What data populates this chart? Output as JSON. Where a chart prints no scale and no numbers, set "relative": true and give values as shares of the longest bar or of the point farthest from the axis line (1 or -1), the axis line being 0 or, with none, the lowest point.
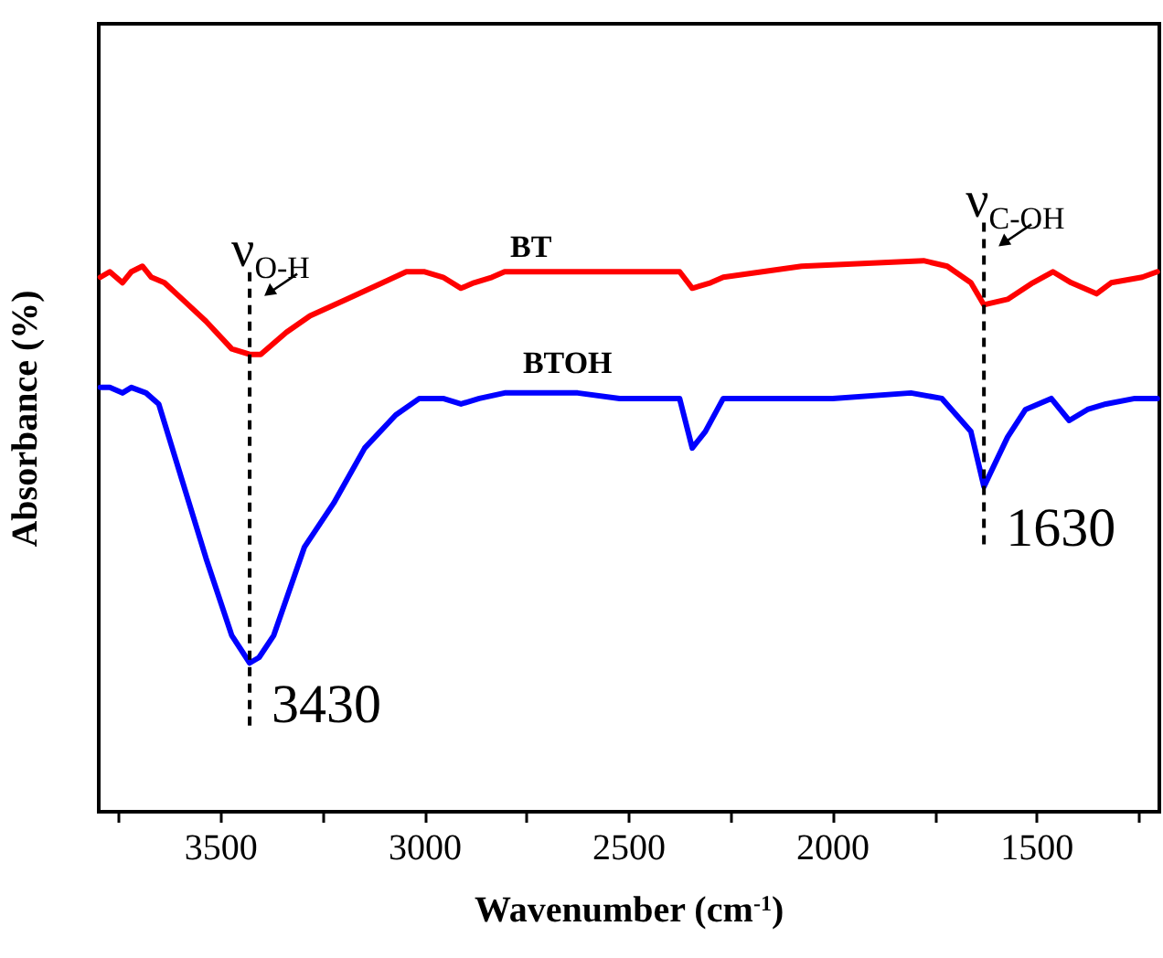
{
  "chart_data": {
    "type": "line",
    "xlabel": "Wavenumber (cm$^{-1}$)",
    "ylabel": "Absorbance (%)",
    "relative": true,
    "xlim": [
      3800,
      1200
    ],
    "xticks": [
      {
        "value": 3750,
        "label": null
      },
      3500,
      {
        "value": 3250,
        "label": null
      },
      3000,
      {
        "value": 2750,
        "label": null
      },
      2500,
      {
        "value": 2250,
        "label": null
      },
      2000,
      {
        "value": 1750,
        "label": null
      },
      1500,
      {
        "value": 1250,
        "label": null
      }
    ],
    "series": [
      {
        "name": "BT",
        "color": "#ff0000",
        "x": [
          3796,
          3773,
          3742,
          3720,
          3693,
          3671,
          3639,
          3595,
          3537,
          3474,
          3430,
          3403,
          3340,
          3282,
          3193,
          3104,
          3046,
          3001,
          2956,
          2912,
          2880,
          2836,
          2805,
          2702,
          2523,
          2376,
          2345,
          2300,
          2269,
          2077,
          1778,
          1720,
          1662,
          1630,
          1572,
          1510,
          1461,
          1416,
          1354,
          1318,
          1242,
          1205
        ],
        "values": [
          0.97,
          0.98,
          0.96,
          0.98,
          0.99,
          0.97,
          0.96,
          0.93,
          0.89,
          0.84,
          0.83,
          0.83,
          0.87,
          0.9,
          0.93,
          0.96,
          0.98,
          0.98,
          0.97,
          0.95,
          0.96,
          0.97,
          0.98,
          0.98,
          0.98,
          0.98,
          0.95,
          0.96,
          0.97,
          0.99,
          1.0,
          0.99,
          0.96,
          0.92,
          0.93,
          0.96,
          0.98,
          0.96,
          0.94,
          0.96,
          0.97,
          0.98
        ]
      },
      {
        "name": "BTOH",
        "color": "#0000ff",
        "x": [
          3796,
          3773,
          3742,
          3720,
          3684,
          3653,
          3595,
          3537,
          3474,
          3430,
          3407,
          3371,
          3296,
          3224,
          3148,
          3072,
          3014,
          2956,
          2912,
          2867,
          2805,
          2626,
          2523,
          2376,
          2345,
          2313,
          2269,
          2001,
          1809,
          1733,
          1662,
          1630,
          1572,
          1528,
          1465,
          1421,
          1376,
          1331,
          1260,
          1205
        ],
        "values": [
          0.77,
          0.77,
          0.76,
          0.77,
          0.76,
          0.74,
          0.6,
          0.46,
          0.32,
          0.27,
          0.28,
          0.32,
          0.48,
          0.56,
          0.66,
          0.72,
          0.75,
          0.75,
          0.74,
          0.75,
          0.76,
          0.76,
          0.75,
          0.75,
          0.66,
          0.69,
          0.75,
          0.75,
          0.76,
          0.75,
          0.69,
          0.59,
          0.68,
          0.73,
          0.75,
          0.71,
          0.73,
          0.74,
          0.75,
          0.75
        ]
      }
    ],
    "ref_lines": [
      {
        "axis": "x",
        "value": 3430,
        "label": "3430",
        "line_style": "dashed",
        "color": "#000000"
      },
      {
        "axis": "x",
        "value": 1630,
        "label": "1630",
        "line_style": "dashed",
        "color": "#000000"
      }
    ],
    "annotations": [
      {
        "text": "ν$_{O-H}$",
        "x": 3430,
        "y": 0.83
      },
      {
        "text": "ν$_{C-OH}$",
        "x": 1630,
        "y": 0.92
      }
    ],
    "legend": false,
    "grid": false,
    "marker": "none",
    "line_style": "solid"
  }
}
